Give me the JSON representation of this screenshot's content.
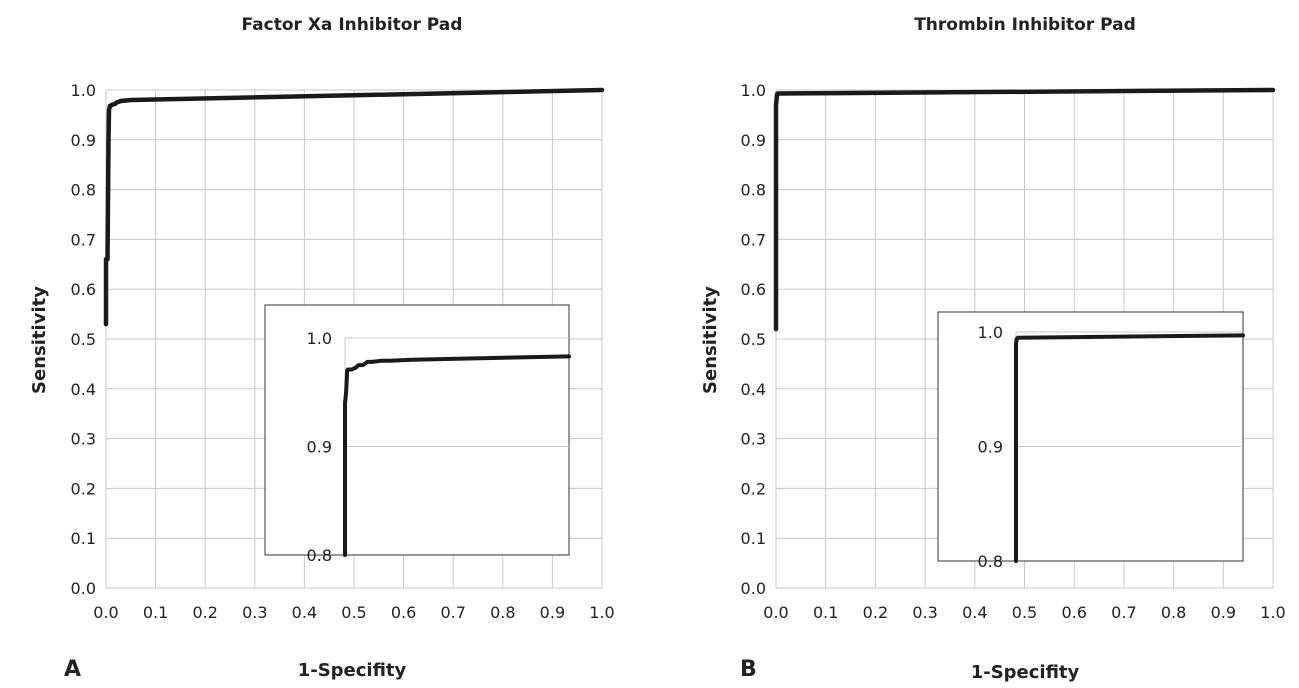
{
  "chart_data": [
    {
      "panel": "A",
      "type": "line",
      "title": "Factor Xa Inhibitor Pad",
      "xlabel": "1-Specifity",
      "ylabel": "Sensitivity",
      "xlim": [
        0,
        1
      ],
      "ylim": [
        0,
        1
      ],
      "x_ticks": [
        "0.0",
        "0.1",
        "0.2",
        "0.3",
        "0.4",
        "0.5",
        "0.6",
        "0.7",
        "0.8",
        "0.9",
        "1.0"
      ],
      "y_ticks": [
        "0.0",
        "0.1",
        "0.2",
        "0.3",
        "0.4",
        "0.5",
        "0.6",
        "0.7",
        "0.8",
        "0.9",
        "1.0"
      ],
      "grid": true,
      "series": [
        {
          "x": [
            0.0,
            0.0,
            0.003,
            0.005,
            0.006,
            0.008,
            0.012,
            0.018,
            0.022,
            0.03,
            0.05,
            1.0
          ],
          "y": [
            0.53,
            0.66,
            0.66,
            0.9,
            0.96,
            0.968,
            0.97,
            0.972,
            0.975,
            0.978,
            0.98,
            1.0
          ]
        }
      ],
      "inset": {
        "y_ticks": [
          "1.0",
          "0.9",
          "0.8"
        ],
        "ylim": [
          0.8,
          1.0
        ],
        "xlim": [
          0.0,
          0.1
        ],
        "grid": true,
        "series": [
          {
            "x": [
              0.0,
              0.0,
              0.0005,
              0.001,
              0.0012,
              0.003,
              0.005,
              0.006,
              0.008,
              0.01,
              0.012,
              0.016,
              0.02,
              0.03,
              0.1
            ],
            "y": [
              0.8,
              0.94,
              0.95,
              0.97,
              0.971,
              0.971,
              0.973,
              0.975,
              0.975,
              0.978,
              0.978,
              0.979,
              0.979,
              0.98,
              0.983
            ]
          }
        ]
      }
    },
    {
      "panel": "B",
      "type": "line",
      "title": "Thrombin Inhibitor Pad",
      "xlabel": "1-Specifity",
      "ylabel": "Sensitivity",
      "xlim": [
        0,
        1
      ],
      "ylim": [
        0,
        1
      ],
      "x_ticks": [
        "0.0",
        "0.1",
        "0.2",
        "0.3",
        "0.4",
        "0.5",
        "0.6",
        "0.7",
        "0.8",
        "0.9",
        "1.0"
      ],
      "y_ticks": [
        "0.0",
        "0.1",
        "0.2",
        "0.3",
        "0.4",
        "0.5",
        "0.6",
        "0.7",
        "0.8",
        "0.9",
        "1.0"
      ],
      "grid": true,
      "series": [
        {
          "x": [
            0.0,
            0.0,
            0.002,
            0.003,
            1.0
          ],
          "y": [
            0.52,
            0.97,
            0.99,
            0.993,
            1.0
          ]
        }
      ],
      "inset": {
        "y_ticks": [
          "1.0",
          "0.9",
          "0.8"
        ],
        "ylim": [
          0.8,
          1.0
        ],
        "xlim": [
          0.0,
          0.1
        ],
        "grid": true,
        "series": [
          {
            "x": [
              0.0,
              0.0,
              0.0003,
              0.0008,
              0.1
            ],
            "y": [
              0.8,
              0.99,
              0.994,
              0.995,
              0.997
            ]
          }
        ]
      }
    }
  ]
}
